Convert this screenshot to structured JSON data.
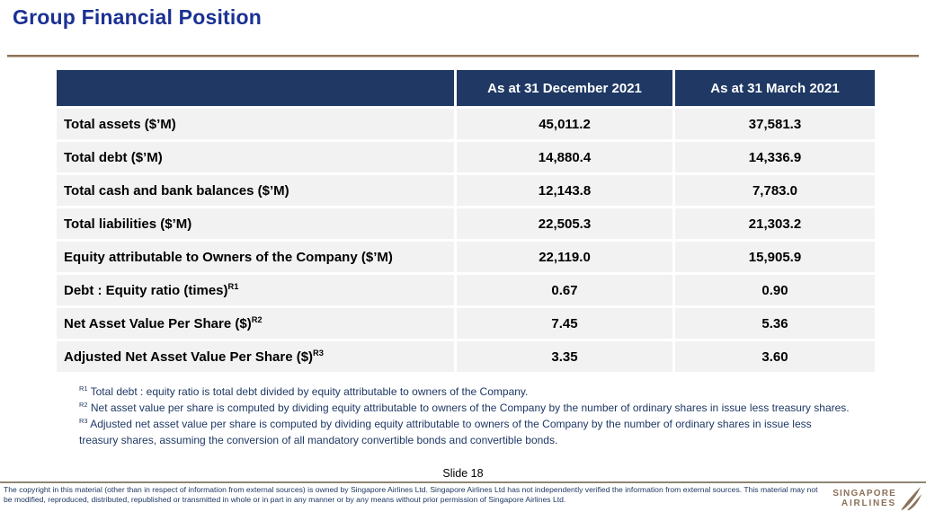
{
  "page": {
    "title": "Group Financial Position"
  },
  "table": {
    "columns": [
      "",
      "As at 31 December 2021",
      "As at 31 March 2021"
    ],
    "rows": [
      {
        "label": "Total assets ($’M)",
        "sup": "",
        "values": [
          "45,011.2",
          "37,581.3"
        ]
      },
      {
        "label": "Total debt ($’M)",
        "sup": "",
        "values": [
          "14,880.4",
          "14,336.9"
        ]
      },
      {
        "label": "Total cash and bank balances ($’M)",
        "sup": "",
        "values": [
          "12,143.8",
          "7,783.0"
        ]
      },
      {
        "label": "Total liabilities ($’M)",
        "sup": "",
        "values": [
          "22,505.3",
          "21,303.2"
        ]
      },
      {
        "label": "Equity attributable to Owners of the Company ($’M)",
        "sup": "",
        "values": [
          "22,119.0",
          "15,905.9"
        ]
      },
      {
        "label": "Debt : Equity ratio (times)",
        "sup": "R1",
        "values": [
          "0.67",
          "0.90"
        ]
      },
      {
        "label": "Net Asset Value Per Share ($)",
        "sup": "R2",
        "values": [
          "7.45",
          "5.36"
        ]
      },
      {
        "label": "Adjusted Net Asset Value Per Share ($)",
        "sup": "R3",
        "values": [
          "3.35",
          "3.60"
        ]
      }
    ]
  },
  "footnotes": [
    {
      "sup": "R1",
      "text": "Total debt : equity ratio is total debt divided by equity attributable to owners of the Company."
    },
    {
      "sup": "R2",
      "text": "Net asset value per share is computed by dividing equity attributable to owners of the Company by the number of ordinary shares in issue less treasury shares."
    },
    {
      "sup": "R3",
      "text": "Adjusted net asset value per share is computed by dividing equity attributable to owners of the Company by the number of ordinary shares in issue less treasury shares, assuming the conversion of all mandatory convertible bonds and convertible bonds."
    }
  ],
  "footer": {
    "slide_label": "Slide 18",
    "copyright": "The copyright in this material (other than in respect of information from external sources) is owned by Singapore Airlines Ltd. Singapore Airlines Ltd has not independently verified the information from external sources. This material may not be modified, reproduced, distributed, republished or transmitted in whole or in part in any manner or by any means without prior permission of Singapore Airlines Ltd.",
    "logo": {
      "line1": "SINGAPORE",
      "line2": "AIRLINES",
      "icon": "sia-bird-logo"
    }
  },
  "colors": {
    "title": "#1B3193",
    "header_bg": "#1F3864",
    "row_bg": "#F2F2F2",
    "accent_line": "#8B7355",
    "footnote_text": "#1F3864",
    "logo": "#8A7158"
  }
}
